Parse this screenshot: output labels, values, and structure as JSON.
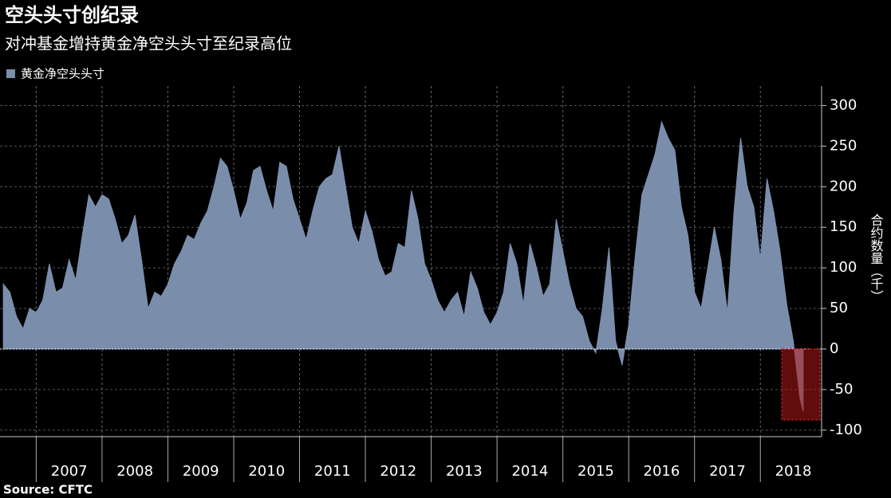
{
  "chart_data": {
    "type": "area",
    "title": "空头头寸创纪录",
    "subtitle": "对冲基金增持黄金净空头头寸至纪录高位",
    "y_label": "合约数量（千）",
    "source": "Source: CFTC",
    "x": [
      2006.5,
      2006.6,
      2006.7,
      2006.8,
      2006.9,
      2007.0,
      2007.1,
      2007.2,
      2007.3,
      2007.4,
      2007.5,
      2007.6,
      2007.7,
      2007.8,
      2007.9,
      2008.0,
      2008.1,
      2008.2,
      2008.3,
      2008.4,
      2008.5,
      2008.6,
      2008.7,
      2008.8,
      2008.9,
      2009.0,
      2009.1,
      2009.2,
      2009.3,
      2009.4,
      2009.5,
      2009.6,
      2009.7,
      2009.8,
      2009.9,
      2010.0,
      2010.1,
      2010.2,
      2010.3,
      2010.4,
      2010.5,
      2010.6,
      2010.7,
      2010.8,
      2010.9,
      2011.0,
      2011.1,
      2011.2,
      2011.3,
      2011.4,
      2011.5,
      2011.6,
      2011.7,
      2011.8,
      2011.9,
      2012.0,
      2012.1,
      2012.2,
      2012.3,
      2012.4,
      2012.5,
      2012.6,
      2012.7,
      2012.8,
      2012.9,
      2013.0,
      2013.1,
      2013.2,
      2013.3,
      2013.4,
      2013.5,
      2013.6,
      2013.7,
      2013.8,
      2013.9,
      2014.0,
      2014.1,
      2014.2,
      2014.3,
      2014.4,
      2014.5,
      2014.6,
      2014.7,
      2014.8,
      2014.9,
      2015.0,
      2015.1,
      2015.2,
      2015.3,
      2015.4,
      2015.5,
      2015.6,
      2015.7,
      2015.8,
      2015.9,
      2016.0,
      2016.1,
      2016.2,
      2016.3,
      2016.4,
      2016.5,
      2016.6,
      2016.7,
      2016.8,
      2016.9,
      2017.0,
      2017.1,
      2017.2,
      2017.3,
      2017.4,
      2017.5,
      2017.6,
      2017.7,
      2017.8,
      2017.9,
      2018.0,
      2018.1,
      2018.2,
      2018.3,
      2018.4,
      2018.5,
      2018.6,
      2018.65
    ],
    "series": [
      {
        "name": "黄金净空头头寸",
        "color": "#7a8eac",
        "values": [
          80,
          70,
          40,
          25,
          50,
          45,
          60,
          105,
          70,
          75,
          110,
          85,
          140,
          190,
          175,
          190,
          185,
          160,
          130,
          140,
          165,
          110,
          50,
          70,
          65,
          80,
          105,
          120,
          140,
          135,
          155,
          170,
          200,
          235,
          225,
          195,
          160,
          180,
          220,
          225,
          195,
          170,
          230,
          225,
          185,
          160,
          135,
          170,
          200,
          210,
          215,
          250,
          200,
          150,
          130,
          170,
          145,
          110,
          90,
          95,
          130,
          125,
          195,
          160,
          105,
          85,
          60,
          45,
          60,
          70,
          40,
          95,
          75,
          45,
          30,
          45,
          70,
          130,
          105,
          55,
          130,
          100,
          65,
          80,
          160,
          120,
          80,
          50,
          40,
          10,
          -5,
          50,
          125,
          10,
          -20,
          30,
          115,
          190,
          215,
          240,
          280,
          260,
          245,
          175,
          140,
          70,
          50,
          100,
          150,
          110,
          45,
          170,
          260,
          200,
          175,
          110,
          210,
          170,
          120,
          55,
          10,
          -60,
          -77
        ]
      }
    ],
    "xlim": [
      2006.45,
      2018.93
    ],
    "xticks": [
      {
        "value": 2007.5,
        "label": "2007"
      },
      {
        "value": 2008.5,
        "label": "2008"
      },
      {
        "value": 2009.5,
        "label": "2009"
      },
      {
        "value": 2010.5,
        "label": "2010"
      },
      {
        "value": 2011.5,
        "label": "2011"
      },
      {
        "value": 2012.5,
        "label": "2012"
      },
      {
        "value": 2013.5,
        "label": "2013"
      },
      {
        "value": 2014.5,
        "label": "2014"
      },
      {
        "value": 2015.5,
        "label": "2015"
      },
      {
        "value": 2016.5,
        "label": "2016"
      },
      {
        "value": 2017.5,
        "label": "2017"
      },
      {
        "value": 2018.5,
        "label": "2018"
      }
    ],
    "xgrid": [
      2007,
      2008,
      2009,
      2010,
      2011,
      2012,
      2013,
      2014,
      2015,
      2016,
      2017,
      2018
    ],
    "ylim": [
      -108,
      324
    ],
    "yticks": [
      300,
      250,
      200,
      150,
      100,
      50,
      0,
      -50,
      -100
    ],
    "grid": true
  }
}
